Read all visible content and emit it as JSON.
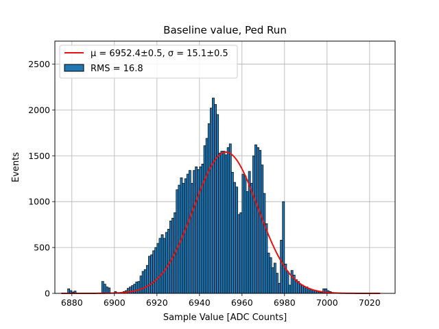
{
  "chart_data": {
    "type": "bar",
    "title": "Baseline value, Ped Run",
    "xlabel": "Sample Value [ADC Counts]",
    "ylabel": "Events",
    "xlim": [
      6872,
      7032
    ],
    "ylim": [
      0,
      2750
    ],
    "x_ticks": [
      6880,
      6900,
      6920,
      6940,
      6960,
      6980,
      7000,
      7020
    ],
    "y_ticks": [
      0,
      500,
      1000,
      1500,
      2000,
      2500
    ],
    "grid": true,
    "legend_position": "top-left",
    "bar_color": "#1f77b4",
    "fit_color": "#e8110f",
    "bin_width": 1,
    "histogram": {
      "bin_left_edges": [
        6877,
        6878,
        6879,
        6880,
        6881,
        6882,
        6883,
        6884,
        6885,
        6886,
        6887,
        6888,
        6889,
        6890,
        6891,
        6892,
        6893,
        6894,
        6895,
        6896,
        6897,
        6898,
        6899,
        6900,
        6901,
        6902,
        6903,
        6904,
        6905,
        6906,
        6907,
        6908,
        6909,
        6910,
        6911,
        6912,
        6913,
        6914,
        6915,
        6916,
        6917,
        6918,
        6919,
        6920,
        6921,
        6922,
        6923,
        6924,
        6925,
        6926,
        6927,
        6928,
        6929,
        6930,
        6931,
        6932,
        6933,
        6934,
        6935,
        6936,
        6937,
        6938,
        6939,
        6940,
        6941,
        6942,
        6943,
        6944,
        6945,
        6946,
        6947,
        6948,
        6949,
        6950,
        6951,
        6952,
        6953,
        6954,
        6955,
        6956,
        6957,
        6958,
        6959,
        6960,
        6961,
        6962,
        6963,
        6964,
        6965,
        6966,
        6967,
        6968,
        6969,
        6970,
        6971,
        6972,
        6973,
        6974,
        6975,
        6976,
        6977,
        6978,
        6979,
        6980,
        6981,
        6982,
        6983,
        6984,
        6985,
        6986,
        6987,
        6988,
        6989,
        6990,
        6991,
        6992,
        6993,
        6994,
        6995,
        6996,
        6997,
        6998,
        6999,
        7000,
        7001,
        7002,
        7003,
        7004,
        7005
      ],
      "counts": [
        5,
        50,
        30,
        15,
        25,
        5,
        5,
        5,
        5,
        5,
        5,
        5,
        5,
        5,
        5,
        5,
        5,
        130,
        100,
        70,
        60,
        5,
        5,
        20,
        5,
        5,
        5,
        20,
        30,
        55,
        70,
        85,
        100,
        125,
        130,
        190,
        240,
        260,
        305,
        405,
        420,
        465,
        500,
        545,
        600,
        640,
        600,
        665,
        700,
        790,
        820,
        880,
        1130,
        1180,
        1260,
        1200,
        1250,
        1300,
        1340,
        1200,
        1340,
        1380,
        1350,
        1380,
        1410,
        1610,
        1690,
        1850,
        2020,
        2130,
        2060,
        1950,
        1530,
        1550,
        1550,
        1510,
        1590,
        1630,
        1320,
        1210,
        1160,
        860,
        880,
        1300,
        1280,
        1110,
        1330,
        1200,
        1500,
        1620,
        1590,
        1560,
        1400,
        1090,
        760,
        440,
        390,
        280,
        330,
        220,
        110,
        580,
        1000,
        320,
        240,
        90,
        250,
        200,
        150,
        130,
        100,
        90,
        70,
        70,
        55,
        40,
        35,
        30,
        20,
        10,
        10,
        50,
        50,
        30,
        20,
        10,
        5,
        5,
        5,
        5,
        5,
        5,
        5
      ],
      "rms": 16.8
    },
    "fit": {
      "type": "gaussian",
      "mu": 6952.4,
      "sigma": 15.1,
      "amplitude": 1540,
      "x_range": [
        6875,
        7025
      ]
    },
    "legend": [
      {
        "label": "μ = 6952.4±0.5, σ = 15.1±0.5",
        "kind": "line"
      },
      {
        "label": "RMS = 16.8",
        "kind": "patch"
      }
    ]
  }
}
